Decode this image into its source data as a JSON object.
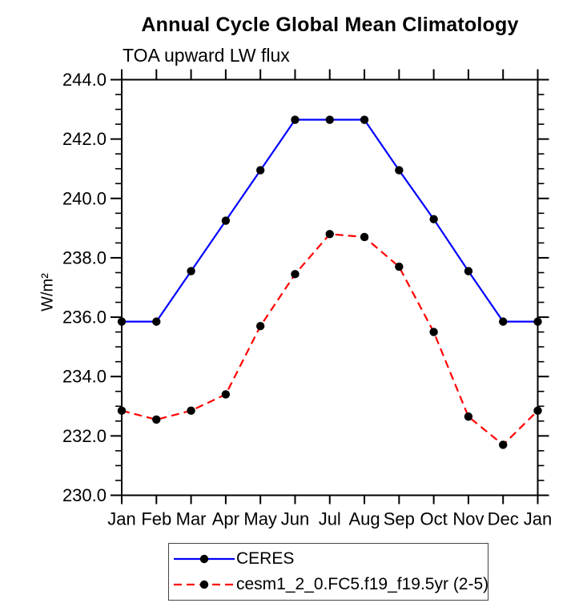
{
  "title": "Annual Cycle Global Mean Climatology",
  "subtitle": "TOA upward LW flux",
  "y_axis": {
    "unit_label": "W/m²",
    "tick_labels": [
      "244.0",
      "242.0",
      "240.0",
      "238.0",
      "236.0",
      "234.0",
      "232.0",
      "230.0"
    ],
    "major_step": 2.0,
    "minor_step": 0.5
  },
  "x_axis": {
    "tick_labels": [
      "Jan",
      "Feb",
      "Mar",
      "Apr",
      "May",
      "Jun",
      "Jul",
      "Aug",
      "Sep",
      "Oct",
      "Nov",
      "Dec",
      "Jan"
    ]
  },
  "legend": {
    "entries": [
      {
        "label": "CERES",
        "color": "#0000ff",
        "style": "solid"
      },
      {
        "label": "cesm1_2_0.FC5.f19_f19.5yr (2-5)",
        "color": "#ff0000",
        "style": "dashed"
      }
    ]
  },
  "chart_data": {
    "type": "line",
    "title": "Annual Cycle Global Mean Climatology",
    "subtitle": "TOA upward LW flux",
    "xlabel": "",
    "ylabel": "W/m²",
    "ylim": [
      230.0,
      244.0
    ],
    "y_major_step": 2.0,
    "y_minor_step": 0.5,
    "grid": false,
    "legend_position": "bottom",
    "categories": [
      "Jan",
      "Feb",
      "Mar",
      "Apr",
      "May",
      "Jun",
      "Jul",
      "Aug",
      "Sep",
      "Oct",
      "Nov",
      "Dec",
      "Jan"
    ],
    "series": [
      {
        "name": "CERES",
        "color": "#0000ff",
        "line_style": "solid",
        "marker": "circle",
        "marker_color": "#000000",
        "values": [
          235.85,
          235.85,
          237.55,
          239.25,
          240.95,
          242.65,
          242.65,
          242.65,
          240.95,
          239.3,
          237.55,
          235.85,
          235.85
        ]
      },
      {
        "name": "cesm1_2_0.FC5.f19_f19.5yr (2-5)",
        "color": "#ff0000",
        "line_style": "dashed",
        "marker": "circle",
        "marker_color": "#000000",
        "values": [
          232.85,
          232.55,
          232.85,
          233.4,
          235.7,
          237.45,
          238.8,
          238.7,
          237.7,
          235.5,
          232.65,
          231.7,
          232.85
        ]
      }
    ]
  }
}
